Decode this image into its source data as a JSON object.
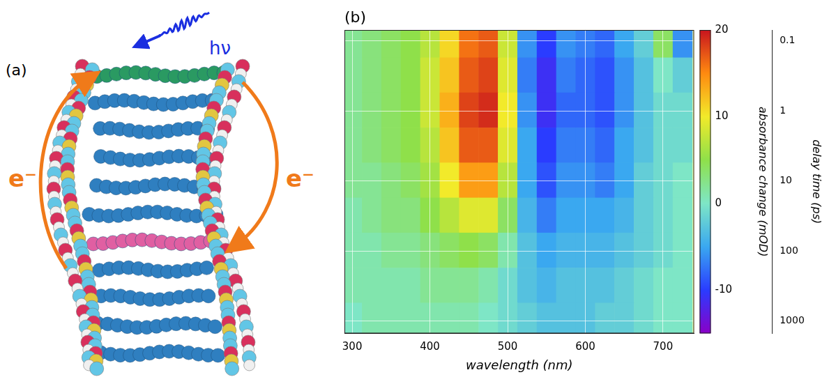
{
  "panel_a": {
    "panel_label": "(a)",
    "photon_label": "hν",
    "electron_labels": [
      "e⁻",
      "e⁻"
    ]
  },
  "chart_data": {
    "type": "heatmap",
    "panel_label": "(b)",
    "xlabel": "wavelength (nm)",
    "ylabel": "delay time (ps)",
    "x": [
      300,
      325,
      350,
      375,
      400,
      425,
      450,
      475,
      500,
      525,
      550,
      575,
      600,
      625,
      650,
      675,
      700,
      725
    ],
    "y": [
      0.1,
      0.3,
      1,
      3,
      10,
      30,
      100,
      300,
      1000
    ],
    "cells": [
      [
        2,
        3,
        4,
        5,
        7,
        11,
        16,
        17,
        8,
        -6,
        -10,
        -6,
        -7,
        -8,
        -5,
        -2,
        4,
        -6
      ],
      [
        2,
        3,
        4,
        5,
        8,
        12,
        17,
        18,
        9,
        -7,
        -11,
        -7,
        -8,
        -9,
        -6,
        -3,
        0,
        -2
      ],
      [
        2,
        3,
        4,
        5,
        8,
        13,
        18,
        19,
        10,
        -6,
        -11,
        -8,
        -8,
        -9,
        -6,
        -3,
        -1,
        -1
      ],
      [
        2,
        3,
        4,
        5,
        7,
        12,
        17,
        17,
        9,
        -5,
        -10,
        -7,
        -7,
        -8,
        -5,
        -3,
        -1,
        -1
      ],
      [
        2,
        2,
        3,
        4,
        6,
        10,
        14,
        14,
        7,
        -5,
        -9,
        -6,
        -6,
        -7,
        -5,
        -2,
        -1,
        0
      ],
      [
        1,
        2,
        3,
        3,
        5,
        7,
        9,
        9,
        4,
        -4,
        -7,
        -5,
        -5,
        -5,
        -4,
        -2,
        -1,
        0
      ],
      [
        1,
        1,
        2,
        2,
        3,
        4,
        5,
        4,
        1,
        -3,
        -5,
        -4,
        -4,
        -4,
        -3,
        -2,
        -1,
        0
      ],
      [
        1,
        1,
        1,
        1,
        2,
        2,
        2,
        1,
        -1,
        -3,
        -4,
        -3,
        -3,
        -3,
        -2,
        -1,
        0,
        0
      ],
      [
        0,
        1,
        1,
        1,
        1,
        1,
        1,
        0,
        -1,
        -2,
        -3,
        -3,
        -3,
        -2,
        -2,
        -1,
        0,
        0
      ]
    ],
    "xlim": [
      290,
      740
    ],
    "xticks": [
      300,
      400,
      500,
      600,
      700
    ],
    "ylim": [
      0.07,
      1500
    ],
    "yticks": [
      0.1,
      1,
      10,
      100,
      1000
    ],
    "log": "y",
    "grid": true,
    "colorbar": {
      "label": "absorbance change (mOD)",
      "range": [
        -15,
        20
      ],
      "ticks": [
        -10,
        0,
        10,
        20
      ]
    }
  }
}
